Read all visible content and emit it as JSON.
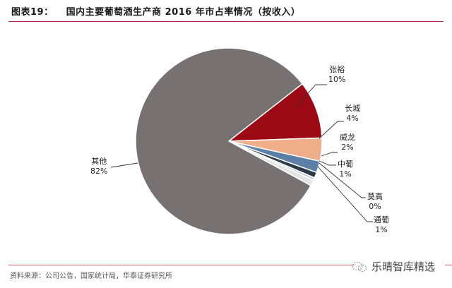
{
  "header": {
    "figure_number": "图表19：",
    "title": "国内主要葡萄酒生产商 2016 年市占率情况（按收入）"
  },
  "footer": {
    "source": "资料来源：公司公告，国家统计局，华泰证券研究所",
    "watermark": "乐晴智库精选",
    "watermark_icon": "wechat-icon"
  },
  "chart_data": {
    "type": "pie",
    "title": "国内主要葡萄酒生产商 2016 年市占率情况（按收入）",
    "categories": [
      "张裕",
      "长城",
      "威龙",
      "中葡",
      "莫高",
      "通葡",
      "其他"
    ],
    "values": [
      10,
      4,
      2,
      1,
      0,
      1,
      82
    ],
    "value_labels": [
      "10%",
      "4%",
      "2%",
      "1%",
      "0%",
      "1%",
      "82%"
    ],
    "colors": [
      "#9b0a14",
      "#efae8a",
      "#5b7fa6",
      "#2e3a48",
      "#c8cdd2",
      "#e2e5e8",
      "#777172"
    ],
    "legend": "none (leader-line data labels)",
    "start_angle_deg": -38,
    "direction": "clockwise"
  }
}
